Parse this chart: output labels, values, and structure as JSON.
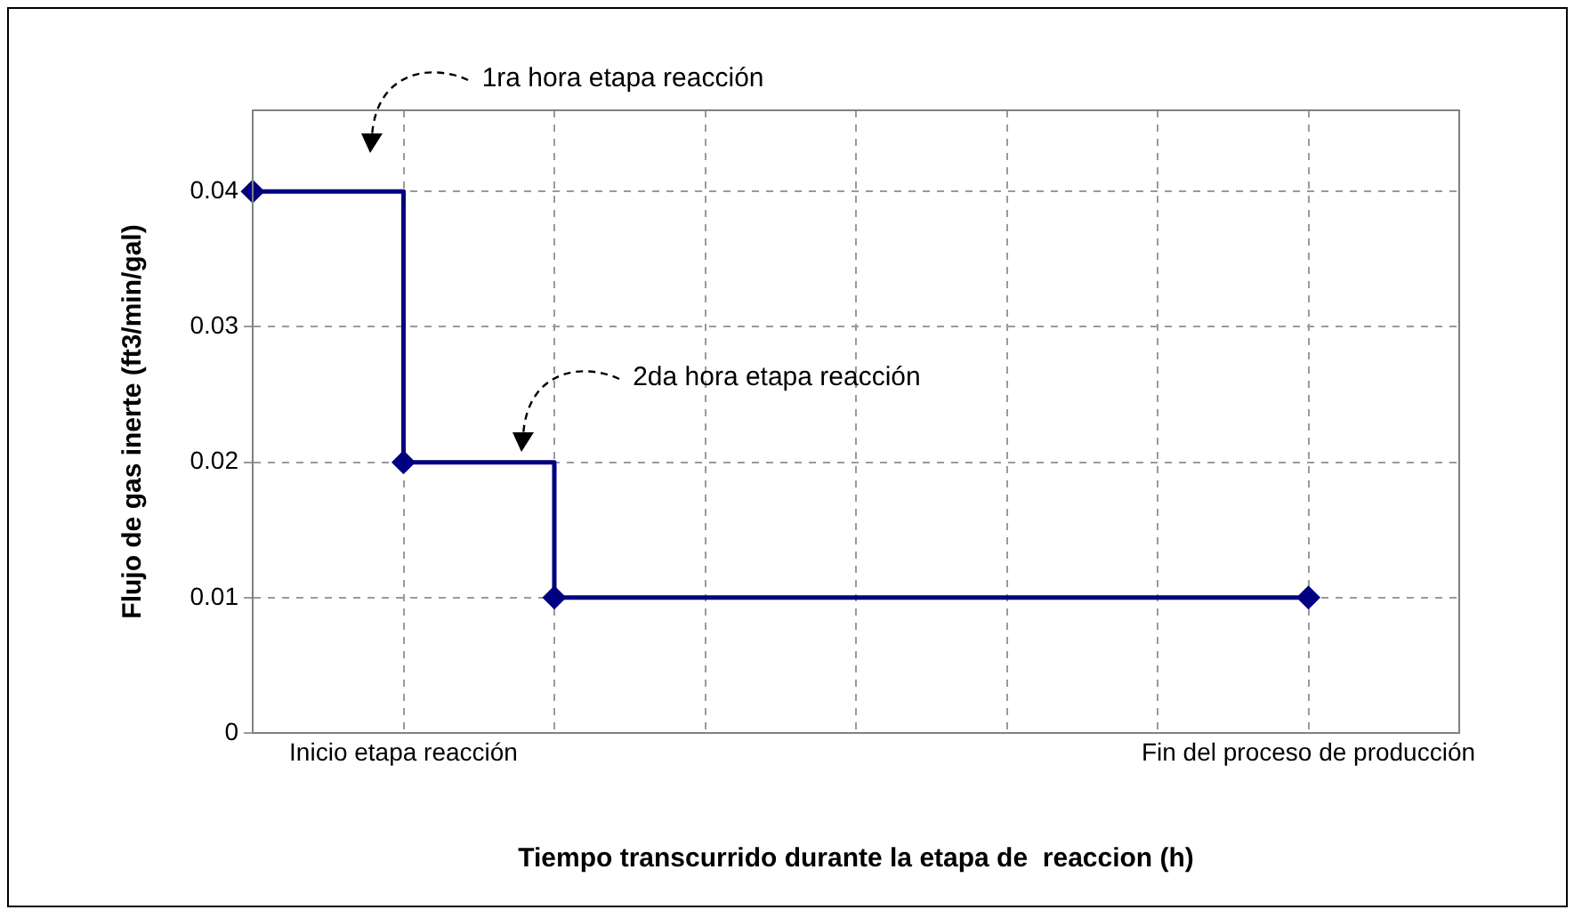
{
  "chart_data": {
    "type": "step",
    "xlabel": "Tiempo transcurrido durante la etapa de  reaccion (h)",
    "ylabel": "Flujo de gas inerte (ft3/min/gal)",
    "categories": [
      null,
      "Inicio etapa reacción",
      null,
      null,
      null,
      null,
      null,
      "Fin del proceso de producción",
      null
    ],
    "series": [
      {
        "color": "#000080",
        "values": [
          0.04,
          0.02,
          0.01,
          null,
          null,
          null,
          null,
          0.01,
          null
        ]
      }
    ],
    "ylim": [
      0,
      0.046
    ],
    "yticks": [
      0,
      0.01,
      0.02,
      0.03,
      0.04
    ],
    "annotations": [
      "1ra hora etapa reacción",
      "2da hora etapa reacción"
    ],
    "grid": true,
    "legend": false,
    "marker": "diamond",
    "line_style": "solid"
  }
}
